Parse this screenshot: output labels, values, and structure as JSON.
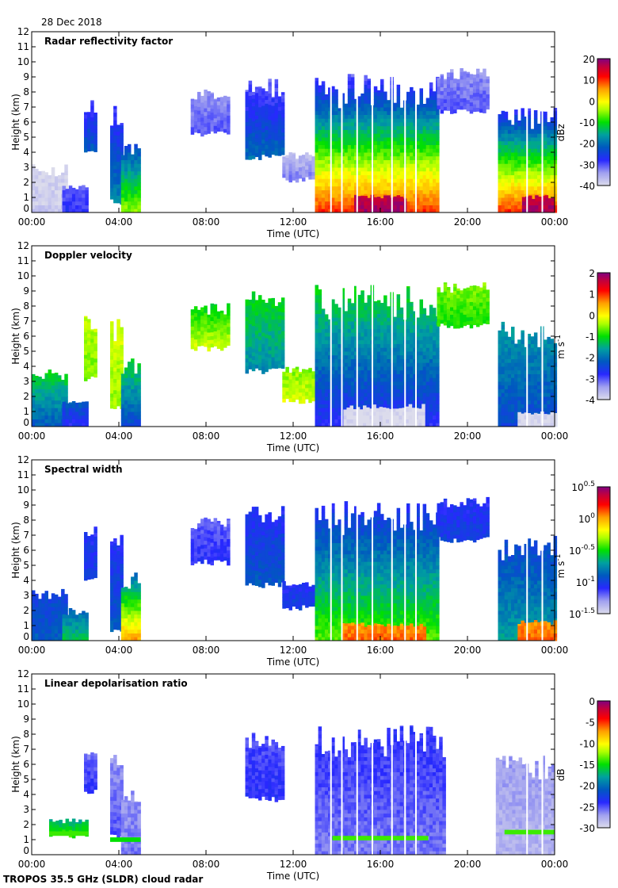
{
  "header": {
    "date": "28 Dec 2018"
  },
  "footer": {
    "label": "TROPOS 35.5 GHz (SLDR) cloud radar"
  },
  "chart_data": [
    {
      "type": "heatmap",
      "title": "Radar reflectivity factor",
      "xlabel": "Time (UTC)",
      "ylabel": "Height (km)",
      "xlim": [
        0,
        24
      ],
      "ylim": [
        0,
        12
      ],
      "xticks": [
        "00:00",
        "04:00",
        "08:00",
        "12:00",
        "16:00",
        "20:00",
        "00:00"
      ],
      "yticks": [
        "0",
        "1",
        "2",
        "3",
        "4",
        "5",
        "6",
        "7",
        "8",
        "9",
        "10",
        "11",
        "12"
      ],
      "colorbar": {
        "unit": "dBz",
        "unit_sup": "",
        "range": [
          -40,
          20
        ],
        "ticks": [
          {
            "b": "20",
            "e": ""
          },
          {
            "b": "10",
            "e": ""
          },
          {
            "b": "0",
            "e": ""
          },
          {
            "b": "-10",
            "e": ""
          },
          {
            "b": "-20",
            "e": ""
          },
          {
            "b": "-30",
            "e": ""
          },
          {
            "b": "-40",
            "e": ""
          }
        ]
      },
      "data_gaps_hours": [
        13.7,
        14.2,
        14.9,
        15.6,
        16.5,
        17.1,
        17.6,
        22.7,
        23.4
      ],
      "echoes": [
        {
          "t": [
            0,
            1.6
          ],
          "z": [
            0,
            3.2
          ],
          "v": [
            -38,
            -40
          ]
        },
        {
          "t": [
            1.4,
            2.6
          ],
          "z": [
            0,
            2
          ],
          "v": [
            -28,
            -32
          ]
        },
        {
          "t": [
            2.4,
            3.0
          ],
          "z": [
            4,
            7.5
          ],
          "v": [
            -22,
            -30
          ]
        },
        {
          "t": [
            3.6,
            4.1
          ],
          "z": [
            0.5,
            7.2
          ],
          "v": [
            -18,
            -30
          ]
        },
        {
          "t": [
            4.1,
            5.0
          ],
          "z": [
            0,
            4.6
          ],
          "v": [
            -5,
            -25
          ]
        },
        {
          "t": [
            7.3,
            9.0
          ],
          "z": [
            5,
            8.2
          ],
          "v": [
            -30,
            -34
          ]
        },
        {
          "t": [
            9.8,
            11.5
          ],
          "z": [
            3.5,
            9
          ],
          "v": [
            -20,
            -32
          ]
        },
        {
          "t": [
            11.5,
            13.0
          ],
          "z": [
            2,
            4
          ],
          "v": [
            -32,
            -38
          ]
        },
        {
          "t": [
            13.0,
            18.6
          ],
          "z": [
            0,
            9.2
          ],
          "v": [
            10,
            -32
          ]
        },
        {
          "t": [
            14.8,
            17.2
          ],
          "z": [
            0,
            1.2
          ],
          "v": [
            18,
            16
          ]
        },
        {
          "t": [
            18.6,
            21.0
          ],
          "z": [
            6.5,
            9.6
          ],
          "v": [
            -30,
            -34
          ]
        },
        {
          "t": [
            21.4,
            24
          ],
          "z": [
            0,
            7
          ],
          "v": [
            10,
            -30
          ]
        },
        {
          "t": [
            22.5,
            24
          ],
          "z": [
            0,
            1.2
          ],
          "v": [
            18,
            16
          ]
        }
      ]
    },
    {
      "type": "heatmap",
      "title": "Doppler velocity",
      "xlabel": "Time (UTC)",
      "ylabel": "Height (km)",
      "xlim": [
        0,
        24
      ],
      "ylim": [
        0,
        12
      ],
      "xticks": [
        "00:00",
        "04:00",
        "08:00",
        "12:00",
        "16:00",
        "20:00",
        "00:00"
      ],
      "yticks": [
        "0",
        "1",
        "2",
        "3",
        "4",
        "5",
        "6",
        "7",
        "8",
        "9",
        "10",
        "11",
        "12"
      ],
      "colorbar": {
        "unit": "m s",
        "unit_sup": "-1",
        "range": [
          -4,
          2
        ],
        "ticks": [
          {
            "b": "2",
            "e": ""
          },
          {
            "b": "1",
            "e": ""
          },
          {
            "b": "0",
            "e": ""
          },
          {
            "b": "-1",
            "e": ""
          },
          {
            "b": "-2",
            "e": ""
          },
          {
            "b": "-3",
            "e": ""
          },
          {
            "b": "-4",
            "e": ""
          }
        ]
      },
      "data_gaps_hours": [
        13.7,
        14.2,
        14.9,
        15.6,
        16.5,
        17.1,
        17.6,
        22.7,
        23.4
      ],
      "echoes": [
        {
          "t": [
            0,
            1.6
          ],
          "z": [
            0,
            3.8
          ],
          "v": [
            -2.2,
            -1.0
          ]
        },
        {
          "t": [
            1.4,
            2.6
          ],
          "z": [
            0,
            2
          ],
          "v": [
            -2.8,
            -2.0
          ]
        },
        {
          "t": [
            2.4,
            3.0
          ],
          "z": [
            3,
            7.5
          ],
          "v": [
            -0.6,
            -0.3
          ]
        },
        {
          "t": [
            3.6,
            4.1
          ],
          "z": [
            1,
            7.2
          ],
          "v": [
            -0.5,
            -0.2
          ]
        },
        {
          "t": [
            4.1,
            5.0
          ],
          "z": [
            0,
            4.6
          ],
          "v": [
            -2.4,
            -1.0
          ]
        },
        {
          "t": [
            7.3,
            9.0
          ],
          "z": [
            5,
            8.2
          ],
          "v": [
            -0.2,
            -1.2
          ]
        },
        {
          "t": [
            9.8,
            11.5
          ],
          "z": [
            3.5,
            9
          ],
          "v": [
            -1.8,
            -1.0
          ]
        },
        {
          "t": [
            11.5,
            13.0
          ],
          "z": [
            1.5,
            4
          ],
          "v": [
            -0.2,
            -0.6
          ]
        },
        {
          "t": [
            13.0,
            18.6
          ],
          "z": [
            0,
            9.4
          ],
          "v": [
            -2.8,
            -1.0
          ]
        },
        {
          "t": [
            14.3,
            18.0
          ],
          "z": [
            0,
            1.5
          ],
          "v": [
            -4,
            -4
          ]
        },
        {
          "t": [
            18.6,
            21.0
          ],
          "z": [
            6.5,
            9.6
          ],
          "v": [
            -1.0,
            -0.5
          ]
        },
        {
          "t": [
            21.4,
            24
          ],
          "z": [
            0,
            7
          ],
          "v": [
            -2.4,
            -1.6
          ]
        },
        {
          "t": [
            22.3,
            24
          ],
          "z": [
            0,
            1
          ],
          "v": [
            -4,
            -4
          ]
        }
      ]
    },
    {
      "type": "heatmap",
      "title": "Spectral width",
      "xlabel": "Time (UTC)",
      "ylabel": "Height (km)",
      "xlim": [
        0,
        24
      ],
      "ylim": [
        0,
        12
      ],
      "xticks": [
        "00:00",
        "04:00",
        "08:00",
        "12:00",
        "16:00",
        "20:00",
        "00:00"
      ],
      "yticks": [
        "0",
        "1",
        "2",
        "3",
        "4",
        "5",
        "6",
        "7",
        "8",
        "9",
        "10",
        "11",
        "12"
      ],
      "colorbar": {
        "unit": "m s",
        "unit_sup": "-1",
        "scale": "log10",
        "range": [
          -1.5,
          0.5
        ],
        "ticks": [
          {
            "b": "10",
            "e": "0.5"
          },
          {
            "b": "10",
            "e": "0"
          },
          {
            "b": "10",
            "e": "-0.5"
          },
          {
            "b": "10",
            "e": "-1"
          },
          {
            "b": "10",
            "e": "-1.5"
          }
        ]
      },
      "data_gaps_hours": [
        13.7,
        14.2,
        14.9,
        15.6,
        16.5,
        17.1,
        17.6,
        22.7,
        23.4
      ],
      "echoes": [
        {
          "t": [
            0,
            1.6
          ],
          "z": [
            0,
            3.6
          ],
          "v": [
            -0.9,
            -1.0
          ]
        },
        {
          "t": [
            1.4,
            2.6
          ],
          "z": [
            0,
            2.2
          ],
          "v": [
            -0.6,
            -0.9
          ]
        },
        {
          "t": [
            2.4,
            3.0
          ],
          "z": [
            4,
            7.6
          ],
          "v": [
            -1.0,
            -1.1
          ]
        },
        {
          "t": [
            3.6,
            4.1
          ],
          "z": [
            0.5,
            7.2
          ],
          "v": [
            -0.9,
            -1.1
          ]
        },
        {
          "t": [
            4.1,
            5.0
          ],
          "z": [
            0,
            4.6
          ],
          "v": [
            0.0,
            -0.9
          ]
        },
        {
          "t": [
            7.3,
            9.0
          ],
          "z": [
            5,
            8.2
          ],
          "v": [
            -1.1,
            -1.2
          ]
        },
        {
          "t": [
            9.8,
            11.5
          ],
          "z": [
            3.5,
            9
          ],
          "v": [
            -0.9,
            -1.1
          ]
        },
        {
          "t": [
            11.5,
            13.0
          ],
          "z": [
            2,
            4
          ],
          "v": [
            -1.0,
            -1.1
          ]
        },
        {
          "t": [
            13.0,
            18.6
          ],
          "z": [
            0,
            9.3
          ],
          "v": [
            -0.4,
            -1.1
          ]
        },
        {
          "t": [
            14.2,
            18.0
          ],
          "z": [
            0,
            1.2
          ],
          "v": [
            0.1,
            0.0
          ]
        },
        {
          "t": [
            18.6,
            21.0
          ],
          "z": [
            6.5,
            9.6
          ],
          "v": [
            -1.0,
            -1.1
          ]
        },
        {
          "t": [
            21.4,
            24
          ],
          "z": [
            0,
            7
          ],
          "v": [
            -0.7,
            -1.0
          ]
        },
        {
          "t": [
            22.3,
            24
          ],
          "z": [
            0,
            1.4
          ],
          "v": [
            0.1,
            0.0
          ]
        }
      ]
    },
    {
      "type": "heatmap",
      "title": "Linear depolarisation ratio",
      "xlabel": "Time (UTC)",
      "ylabel": "Height (km)",
      "xlim": [
        0,
        24
      ],
      "ylim": [
        0,
        12
      ],
      "xticks": [
        "00:00",
        "04:00",
        "08:00",
        "12:00",
        "16:00",
        "20:00",
        "00:00"
      ],
      "yticks": [
        "0",
        "1",
        "2",
        "3",
        "4",
        "5",
        "6",
        "7",
        "8",
        "9",
        "10",
        "11",
        "12"
      ],
      "colorbar": {
        "unit": "dB",
        "unit_sup": "",
        "range": [
          -30,
          0
        ],
        "ticks": [
          {
            "b": "0",
            "e": ""
          },
          {
            "b": "-5",
            "e": ""
          },
          {
            "b": "-10",
            "e": ""
          },
          {
            "b": "-15",
            "e": ""
          },
          {
            "b": "-20",
            "e": ""
          },
          {
            "b": "-25",
            "e": ""
          },
          {
            "b": "-30",
            "e": ""
          }
        ]
      },
      "data_gaps_hours": [
        13.7,
        14.2,
        14.9,
        15.6,
        16.5,
        17.1,
        17.6,
        22.7,
        23.4
      ],
      "echoes": [
        {
          "t": [
            0.8,
            2.6
          ],
          "z": [
            1.1,
            2.4
          ],
          "v": [
            -14,
            -18
          ]
        },
        {
          "t": [
            2.4,
            3.0
          ],
          "z": [
            4,
            6.8
          ],
          "v": [
            -24,
            -26
          ]
        },
        {
          "t": [
            3.6,
            4.1
          ],
          "z": [
            1,
            6.8
          ],
          "v": [
            -25,
            -27
          ]
        },
        {
          "t": [
            4.1,
            5.0
          ],
          "z": [
            0,
            4.6
          ],
          "v": [
            -26,
            -27
          ]
        },
        {
          "t": [
            9.8,
            11.5
          ],
          "z": [
            3.5,
            8.2
          ],
          "v": [
            -24,
            -25
          ]
        },
        {
          "t": [
            13.0,
            19.0
          ],
          "z": [
            0,
            8.6
          ],
          "v": [
            -26,
            -24
          ]
        },
        {
          "t": [
            21.3,
            24
          ],
          "z": [
            0,
            6.6
          ],
          "v": [
            -28,
            -27
          ]
        }
      ],
      "bands": [
        {
          "t": [
            0.8,
            2.6
          ],
          "z": 1.4,
          "v": -14
        },
        {
          "t": [
            3.6,
            5.0
          ],
          "z": 1.0,
          "v": -15
        },
        {
          "t": [
            13.8,
            18.2
          ],
          "z": 1.1,
          "v": -14
        },
        {
          "t": [
            21.7,
            24
          ],
          "z": 1.5,
          "v": -14
        }
      ]
    }
  ]
}
